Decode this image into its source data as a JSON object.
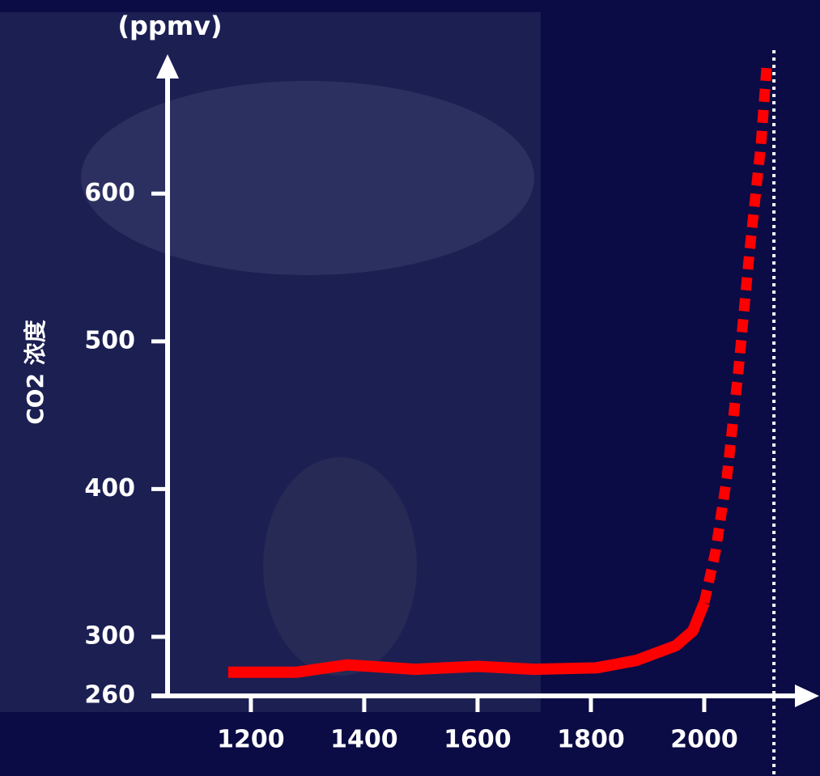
{
  "chart_data": {
    "type": "line",
    "y_label": "CO2 浓度",
    "y_unit": "(ppmv)",
    "x": [
      1160,
      1280,
      1370,
      1490,
      1600,
      1700,
      1810,
      1880,
      1950,
      1980,
      2000,
      2020,
      2040,
      2060,
      2080,
      2100,
      2110
    ],
    "series": [
      {
        "color": "#ff0000",
        "style": "solid",
        "values": [
          276,
          276,
          281,
          278,
          280,
          278,
          279,
          284,
          294,
          304,
          323,
          null,
          null,
          null,
          null,
          null,
          null
        ]
      },
      {
        "color": "#ff0000",
        "style": "dotted",
        "values": [
          null,
          null,
          null,
          null,
          null,
          null,
          null,
          null,
          null,
          null,
          323,
          358,
          408,
          479,
          561,
          633,
          685
        ]
      }
    ],
    "xlim": [
      1053,
      2200
    ],
    "xticks": [
      1200,
      1400,
      1600,
      1800,
      2000
    ],
    "ylim": [
      260,
      690
    ],
    "yticks": [
      260,
      300,
      400,
      500,
      600
    ],
    "vline_x": 2123
  }
}
